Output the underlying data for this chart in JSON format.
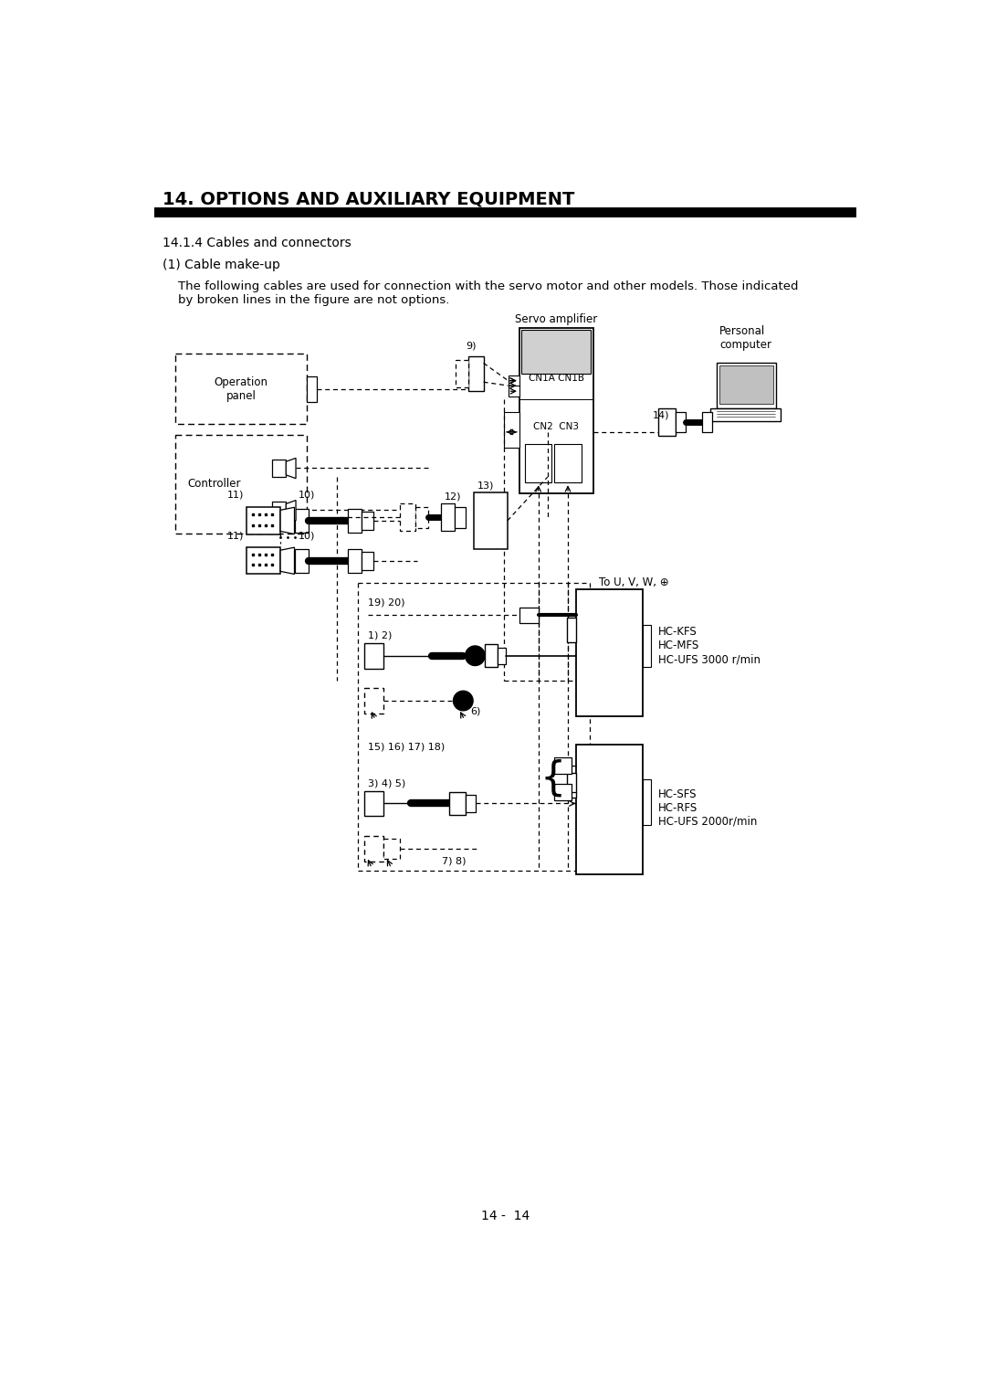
{
  "title": "14. OPTIONS AND AUXILIARY EQUIPMENT",
  "sub1": "14.1.4 Cables and connectors",
  "sub2": "(1) Cable make-up",
  "body": "    The following cables are used for connection with the servo motor and other models. Those indicated\n    by broken lines in the figure are not options.",
  "servo_amp": "Servo amplifier",
  "cn1ab": "CN1A CN1B",
  "cn23": "CN2  CN3",
  "op_panel": "Operation\npanel",
  "controller": "Controller",
  "pc": "Personal\ncomputer",
  "hckfs": "HC-KFS\nHC-MFS\nHC-UFS 3000 r/min",
  "hcsfs": "HC-SFS\nHC-RFS\nHC-UFS 2000r/min",
  "page": "14 -  14",
  "white": "#ffffff",
  "black": "#000000",
  "gray": "#c0c0c0",
  "lt_gray": "#d0d0d0"
}
